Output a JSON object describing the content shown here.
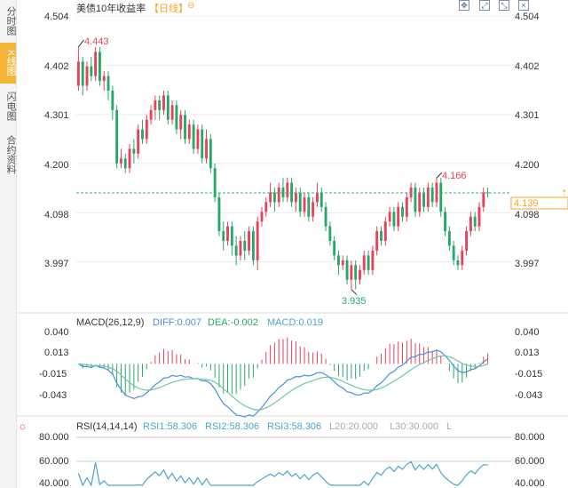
{
  "sidebar": {
    "tabs": [
      {
        "label": "分时图",
        "active": false
      },
      {
        "label": "K线图",
        "active": true
      },
      {
        "label": "闪电图",
        "active": false
      },
      {
        "label": "合约资料",
        "active": false
      }
    ]
  },
  "header": {
    "title": "美债10年收益率",
    "period": "【日线】",
    "settings_icon": "gear-icon",
    "window_icons": [
      "fullscreen-icon",
      "expand-icon",
      "shrink-icon",
      "close-icon"
    ]
  },
  "colors": {
    "up": "#e8415a",
    "down": "#26a86a",
    "price_line": "#2bb08a",
    "last_price": "#f5a623",
    "grid": "#eeeeee",
    "diff": "#4a90d9",
    "dea": "#6cc6a8",
    "macd_text": "#4aa6c8",
    "rsi": "#4aa6c8"
  },
  "chart_data": [
    {
      "type": "candlestick",
      "title": "美债10年收益率",
      "period": "日线",
      "ylim": [
        3.93,
        4.504
      ],
      "yticks": [
        "4.504",
        "4.402",
        "4.301",
        "4.200",
        "4.098",
        "3.997"
      ],
      "annotations": {
        "high": "4.443",
        "low": "3.935",
        "recent_high": "4.166",
        "last": "4.139"
      },
      "candles": [
        [
          4.36,
          4.41,
          4.44,
          4.35
        ],
        [
          4.41,
          4.36,
          4.42,
          4.34
        ],
        [
          4.36,
          4.4,
          4.41,
          4.35
        ],
        [
          4.4,
          4.38,
          4.42,
          4.37
        ],
        [
          4.38,
          4.43,
          4.44,
          4.37
        ],
        [
          4.43,
          4.37,
          4.44,
          4.36
        ],
        [
          4.37,
          4.38,
          4.39,
          4.35
        ],
        [
          4.38,
          4.35,
          4.39,
          4.33
        ],
        [
          4.35,
          4.31,
          4.36,
          4.29
        ],
        [
          4.31,
          4.2,
          4.32,
          4.19
        ],
        [
          4.2,
          4.21,
          4.23,
          4.19
        ],
        [
          4.21,
          4.19,
          4.22,
          4.18
        ],
        [
          4.19,
          4.23,
          4.24,
          4.18
        ],
        [
          4.23,
          4.22,
          4.25,
          4.2
        ],
        [
          4.22,
          4.27,
          4.28,
          4.21
        ],
        [
          4.27,
          4.25,
          4.29,
          4.24
        ],
        [
          4.25,
          4.29,
          4.3,
          4.24
        ],
        [
          4.29,
          4.31,
          4.32,
          4.28
        ],
        [
          4.31,
          4.33,
          4.34,
          4.29
        ],
        [
          4.33,
          4.31,
          4.34,
          4.29
        ],
        [
          4.31,
          4.34,
          4.35,
          4.3
        ],
        [
          4.34,
          4.29,
          4.35,
          4.28
        ],
        [
          4.29,
          4.32,
          4.33,
          4.28
        ],
        [
          4.32,
          4.27,
          4.33,
          4.26
        ],
        [
          4.27,
          4.3,
          4.31,
          4.25
        ],
        [
          4.3,
          4.25,
          4.31,
          4.24
        ],
        [
          4.25,
          4.28,
          4.29,
          4.24
        ],
        [
          4.28,
          4.23,
          4.29,
          4.22
        ],
        [
          4.23,
          4.27,
          4.28,
          4.22
        ],
        [
          4.27,
          4.21,
          4.28,
          4.2
        ],
        [
          4.21,
          4.25,
          4.27,
          4.2
        ],
        [
          4.25,
          4.19,
          4.26,
          4.18
        ],
        [
          4.19,
          4.13,
          4.2,
          4.12
        ],
        [
          4.13,
          4.06,
          4.14,
          4.05
        ],
        [
          4.06,
          4.04,
          4.08,
          4.02
        ],
        [
          4.04,
          4.07,
          4.08,
          4.03
        ],
        [
          4.07,
          4.03,
          4.08,
          4.01
        ],
        [
          4.03,
          4.01,
          4.05,
          3.99
        ],
        [
          4.01,
          4.04,
          4.05,
          4.0
        ],
        [
          4.04,
          4.02,
          4.06,
          4.0
        ],
        [
          4.02,
          4.06,
          4.07,
          4.01
        ],
        [
          4.06,
          4.0,
          4.07,
          3.99
        ],
        [
          4.0,
          4.08,
          4.09,
          3.98
        ],
        [
          4.08,
          4.1,
          4.11,
          4.07
        ],
        [
          4.1,
          4.12,
          4.13,
          4.09
        ],
        [
          4.12,
          4.14,
          4.16,
          4.11
        ],
        [
          4.14,
          4.12,
          4.15,
          4.1
        ],
        [
          4.12,
          4.15,
          4.16,
          4.11
        ],
        [
          4.15,
          4.13,
          4.17,
          4.12
        ],
        [
          4.13,
          4.16,
          4.17,
          4.12
        ],
        [
          4.16,
          4.12,
          4.17,
          4.11
        ],
        [
          4.12,
          4.14,
          4.15,
          4.1
        ],
        [
          4.14,
          4.1,
          4.15,
          4.09
        ],
        [
          4.1,
          4.13,
          4.14,
          4.09
        ],
        [
          4.13,
          4.09,
          4.14,
          4.08
        ],
        [
          4.09,
          4.12,
          4.13,
          4.08
        ],
        [
          4.12,
          4.14,
          4.16,
          4.11
        ],
        [
          4.14,
          4.11,
          4.15,
          4.1
        ],
        [
          4.11,
          4.07,
          4.12,
          4.06
        ],
        [
          4.07,
          4.04,
          4.08,
          4.03
        ],
        [
          4.04,
          4.01,
          4.05,
          4.0
        ],
        [
          4.01,
          3.99,
          4.02,
          3.97
        ],
        [
          3.99,
          4.0,
          4.01,
          3.98
        ],
        [
          4.0,
          3.96,
          4.01,
          3.95
        ],
        [
          3.96,
          3.99,
          4.0,
          3.94
        ],
        [
          3.99,
          3.96,
          4.0,
          3.94
        ],
        [
          3.96,
          3.98,
          3.99,
          3.95
        ],
        [
          3.98,
          4.01,
          4.02,
          3.97
        ],
        [
          4.01,
          3.98,
          4.02,
          3.97
        ],
        [
          3.98,
          4.02,
          4.03,
          3.97
        ],
        [
          4.02,
          4.06,
          4.07,
          4.01
        ],
        [
          4.06,
          4.04,
          4.07,
          4.03
        ],
        [
          4.04,
          4.08,
          4.09,
          4.03
        ],
        [
          4.08,
          4.1,
          4.11,
          4.07
        ],
        [
          4.1,
          4.07,
          4.11,
          4.06
        ],
        [
          4.07,
          4.11,
          4.12,
          4.06
        ],
        [
          4.11,
          4.09,
          4.12,
          4.08
        ],
        [
          4.09,
          4.13,
          4.14,
          4.08
        ],
        [
          4.13,
          4.15,
          4.16,
          4.12
        ],
        [
          4.15,
          4.1,
          4.16,
          4.09
        ],
        [
          4.1,
          4.14,
          4.15,
          4.09
        ],
        [
          4.14,
          4.11,
          4.15,
          4.1
        ],
        [
          4.11,
          4.15,
          4.16,
          4.1
        ],
        [
          4.15,
          4.12,
          4.16,
          4.11
        ],
        [
          4.12,
          4.16,
          4.17,
          4.11
        ],
        [
          4.16,
          4.1,
          4.17,
          4.09
        ],
        [
          4.1,
          4.06,
          4.11,
          4.05
        ],
        [
          4.06,
          4.03,
          4.07,
          4.02
        ],
        [
          4.03,
          4.0,
          4.04,
          3.99
        ],
        [
          4.0,
          3.99,
          4.01,
          3.98
        ],
        [
          3.99,
          4.02,
          4.03,
          3.98
        ],
        [
          4.02,
          4.06,
          4.07,
          4.01
        ],
        [
          4.06,
          4.09,
          4.1,
          4.05
        ],
        [
          4.09,
          4.07,
          4.1,
          4.06
        ],
        [
          4.07,
          4.11,
          4.12,
          4.06
        ],
        [
          4.11,
          4.14,
          4.15,
          4.1
        ],
        [
          4.14,
          4.139,
          4.15,
          4.13
        ]
      ]
    },
    {
      "type": "bar",
      "indicator": "MACD(26,12,9)",
      "diff_label": "DIFF:0.007",
      "dea_label": "DEA:-0.002",
      "macd_label": "MACD:0.019",
      "ylim": [
        -0.06,
        0.048
      ],
      "yticks": [
        "0.040",
        "0.013",
        "-0.015",
        "-0.043"
      ]
    },
    {
      "type": "line",
      "indicator": "RSI(14,14,14)",
      "rsi1_label": "RSI1:58.306",
      "rsi2_label": "RSI2:58.306",
      "rsi3_label": "RSI3:58.306",
      "l20_label": "L20:20.000",
      "l30_label": "L30:30.000",
      "l_label": "L",
      "ylim": [
        40,
        80
      ],
      "yticks": [
        "80.000",
        "60.000",
        "40.000"
      ]
    }
  ]
}
